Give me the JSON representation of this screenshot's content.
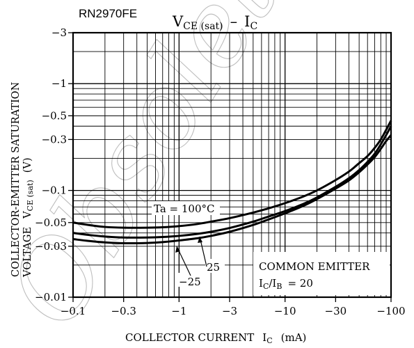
{
  "part_number": "RN2970FE",
  "watermark": "Obsolete",
  "chart_data": {
    "type": "line",
    "title": {
      "main": "V",
      "main_sub": "CE (sat)",
      "sep": "–",
      "var": "I",
      "var_sub": "C"
    },
    "xlabel": {
      "text": "COLLECTOR CURRENT",
      "sym": "I",
      "sub": "C",
      "unit": "(mA)"
    },
    "ylabel": {
      "line1": "COLLECTOR-EMITTER SATURATION",
      "line2a": "VOLTAGE",
      "sym": "V",
      "sub": "CE (sat)",
      "unit": "(V)"
    },
    "x_scale": "log",
    "y_scale": "log",
    "xlim": [
      -0.1,
      -100
    ],
    "ylim": [
      -0.01,
      -3
    ],
    "x_ticks": [
      {
        "v": 0.1,
        "label": "−0.1"
      },
      {
        "v": 0.3,
        "label": "−0.3"
      },
      {
        "v": 1,
        "label": "−1"
      },
      {
        "v": 3,
        "label": "−3"
      },
      {
        "v": 10,
        "label": "−10"
      },
      {
        "v": 30,
        "label": "−30"
      },
      {
        "v": 100,
        "label": "−100"
      }
    ],
    "y_ticks": [
      {
        "v": 3,
        "label": "−3"
      },
      {
        "v": 1,
        "label": "−1"
      },
      {
        "v": 0.5,
        "label": "−0.5"
      },
      {
        "v": 0.3,
        "label": "−0.3"
      },
      {
        "v": 0.1,
        "label": "−0.1"
      },
      {
        "v": 0.05,
        "label": "−0.05"
      },
      {
        "v": 0.03,
        "label": "−0.03"
      },
      {
        "v": 0.01,
        "label": "−0.01"
      }
    ],
    "grid": true,
    "series": [
      {
        "name": "Ta = 100°C",
        "x": [
          -0.1,
          -0.15,
          -0.2,
          -0.3,
          -0.5,
          -0.7,
          -1,
          -1.5,
          -2,
          -3,
          -5,
          -7,
          -10,
          -15,
          -20,
          -30,
          -40,
          -50,
          -60,
          -70,
          -80,
          -90,
          -100
        ],
        "y": [
          -0.05,
          -0.047,
          -0.0455,
          -0.0448,
          -0.0448,
          -0.0452,
          -0.0463,
          -0.0485,
          -0.051,
          -0.055,
          -0.062,
          -0.068,
          -0.076,
          -0.088,
          -0.1,
          -0.125,
          -0.15,
          -0.18,
          -0.21,
          -0.25,
          -0.3,
          -0.37,
          -0.45
        ]
      },
      {
        "name": "25",
        "x": [
          -0.1,
          -0.15,
          -0.2,
          -0.3,
          -0.5,
          -0.7,
          -1,
          -1.5,
          -2,
          -3,
          -5,
          -7,
          -10,
          -15,
          -20,
          -30,
          -40,
          -50,
          -60,
          -70,
          -80,
          -90,
          -100
        ],
        "y": [
          -0.04,
          -0.038,
          -0.037,
          -0.0362,
          -0.0362,
          -0.0366,
          -0.0375,
          -0.0392,
          -0.041,
          -0.0445,
          -0.051,
          -0.057,
          -0.064,
          -0.075,
          -0.086,
          -0.108,
          -0.13,
          -0.155,
          -0.185,
          -0.22,
          -0.27,
          -0.33,
          -0.4
        ]
      },
      {
        "name": "−25",
        "x": [
          -0.1,
          -0.15,
          -0.2,
          -0.3,
          -0.5,
          -0.7,
          -1,
          -1.5,
          -2,
          -3,
          -5,
          -7,
          -10,
          -15,
          -20,
          -30,
          -40,
          -50,
          -60,
          -70,
          -80,
          -90,
          -100
        ],
        "y": [
          -0.035,
          -0.0334,
          -0.0326,
          -0.032,
          -0.0322,
          -0.0328,
          -0.034,
          -0.0357,
          -0.0375,
          -0.041,
          -0.0475,
          -0.0535,
          -0.061,
          -0.072,
          -0.083,
          -0.104,
          -0.124,
          -0.148,
          -0.175,
          -0.205,
          -0.245,
          -0.29,
          -0.33
        ]
      }
    ],
    "annotations": {
      "ta_label": "Ta = 100°C",
      "label_25": "25",
      "label_m25": "−25",
      "condition_line1": "COMMON EMITTER",
      "condition_line2_sym": "I",
      "condition_line2_sub": "C",
      "condition_line2_sep": "/I",
      "condition_line2_sub2": "B",
      "condition_line2_val": "= 20"
    }
  }
}
